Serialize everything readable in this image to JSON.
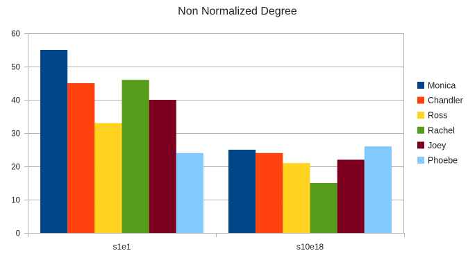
{
  "chart_data": {
    "type": "bar",
    "title": "Non Normalized Degree",
    "xlabel": "",
    "ylabel": "",
    "categories": [
      "s1e1",
      "s10e18"
    ],
    "series": [
      {
        "name": "Monica",
        "color": "#004586",
        "values": [
          55,
          25
        ]
      },
      {
        "name": "Chandler",
        "color": "#ff420e",
        "values": [
          45,
          24
        ]
      },
      {
        "name": "Ross",
        "color": "#ffd320",
        "values": [
          33,
          21
        ]
      },
      {
        "name": "Rachel",
        "color": "#579d1c",
        "values": [
          46,
          15
        ]
      },
      {
        "name": "Joey",
        "color": "#7e0021",
        "values": [
          40,
          22
        ]
      },
      {
        "name": "Phoebe",
        "color": "#83caff",
        "values": [
          24,
          26
        ]
      }
    ],
    "ylim": [
      0,
      60
    ],
    "yticks": [
      0,
      10,
      20,
      30,
      40,
      50,
      60
    ],
    "grid": true,
    "legend": "right"
  }
}
